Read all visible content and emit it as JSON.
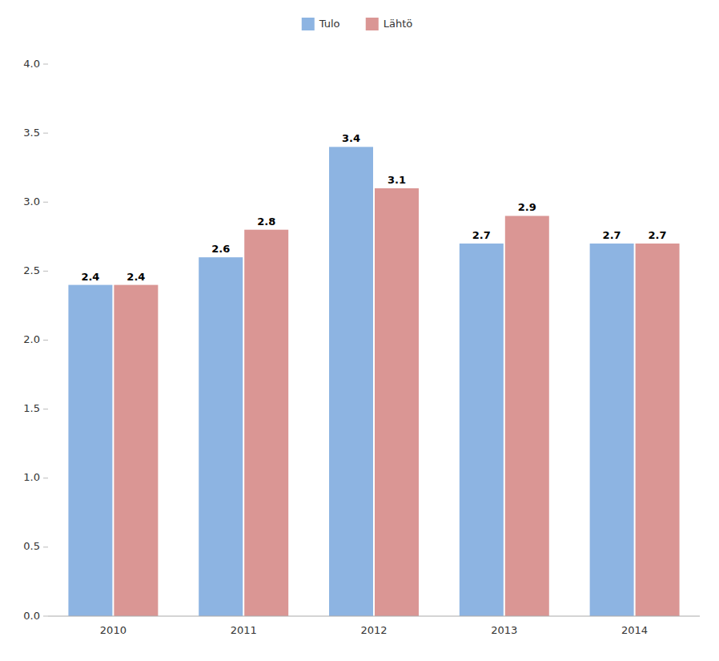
{
  "chart_data": {
    "type": "bar",
    "categories": [
      "2010",
      "2011",
      "2012",
      "2013",
      "2014"
    ],
    "series": [
      {
        "name": "Tulo",
        "color": "#8DB4E2",
        "values": [
          2.4,
          2.6,
          3.4,
          2.7,
          2.7
        ]
      },
      {
        "name": "Lähtö",
        "color": "#DA9694",
        "values": [
          2.4,
          2.8,
          3.1,
          2.9,
          2.7
        ]
      }
    ],
    "ylim": [
      0.0,
      4.0
    ],
    "yticks": [
      {
        "value": 0.0,
        "label": "0.0"
      },
      0.5,
      {
        "value": 1.0,
        "label": "1.0"
      },
      1.5,
      {
        "value": 2.0,
        "label": "2.0"
      },
      2.5,
      {
        "value": 3.0,
        "label": "3.0"
      },
      3.5,
      {
        "value": 4.0,
        "label": "4.0"
      }
    ],
    "grid": false,
    "legend": "top",
    "data_labels": true
  }
}
